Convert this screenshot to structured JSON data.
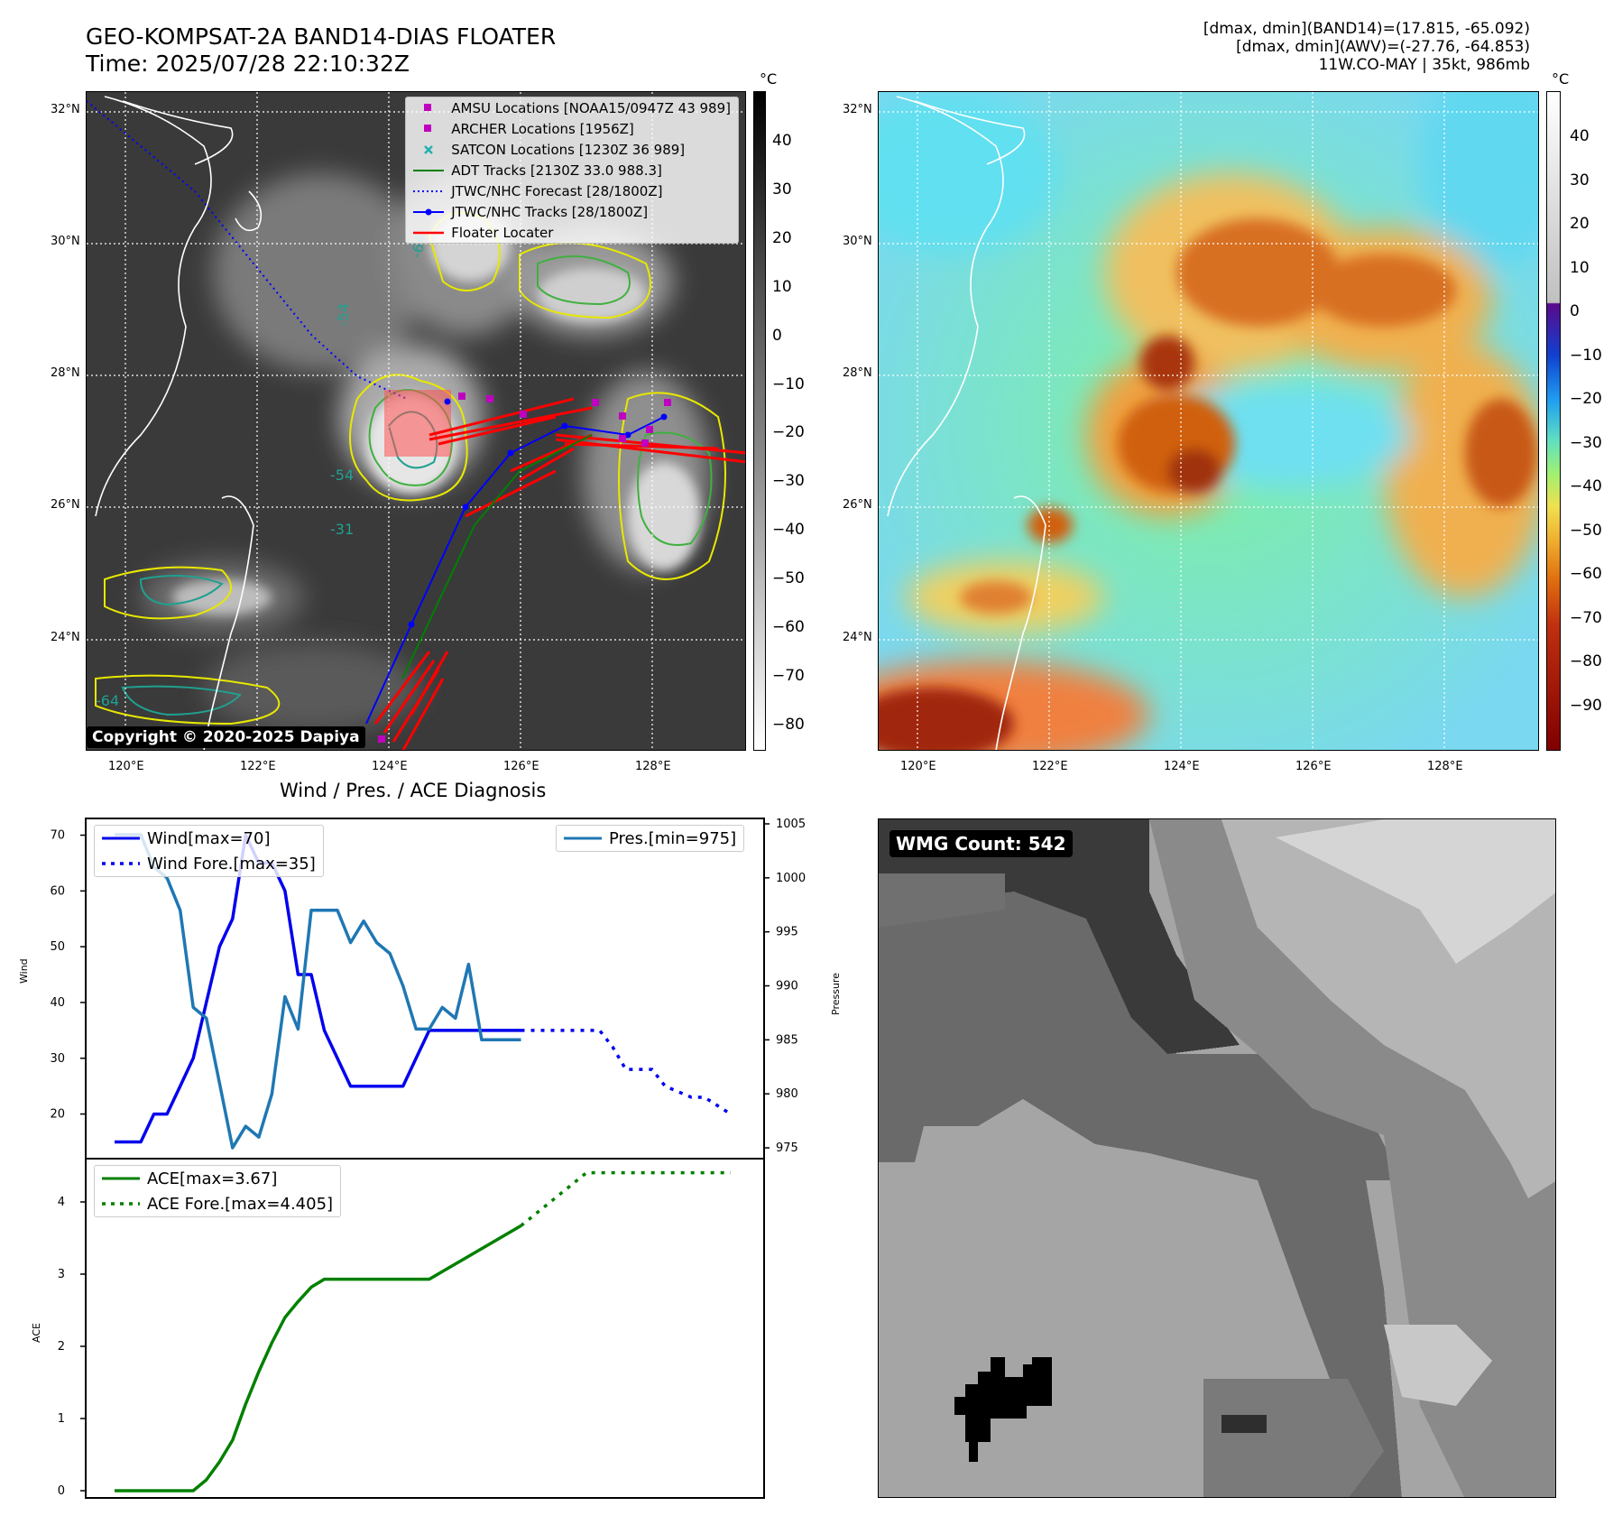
{
  "header": {
    "title_line1": "GEO-KOMPSAT-2A BAND14-DIAS FLOATER",
    "title_line2": "Time: 2025/07/28 22:10:32Z",
    "meta_line1": "[dmax, dmin](BAND14)=(17.815, -65.092)",
    "meta_line2": "[dmax, dmin](AWV)=(-27.76, -64.853)",
    "meta_line3": "11W.CO-MAY | 35kt, 986mb"
  },
  "map_axes": {
    "lat_labels": [
      "32°N",
      "30°N",
      "28°N",
      "26°N",
      "24°N"
    ],
    "lon_labels": [
      "120°E",
      "122°E",
      "124°E",
      "126°E",
      "128°E"
    ]
  },
  "left_map": {
    "colorbar_unit": "°C",
    "colorbar_ticks": [
      "40",
      "30",
      "20",
      "10",
      "0",
      "−10",
      "−20",
      "−30",
      "−40",
      "−50",
      "−60",
      "−70",
      "−80"
    ],
    "contour_labels": [
      "-64",
      "-54",
      "-54",
      "-31",
      "-64"
    ],
    "copyright": "Copyright © 2020-2025 Dapiya",
    "legend": [
      {
        "label": "AMSU Locations [NOAA15/0947Z 43 989]",
        "symbol": "square",
        "color": "#c000c0"
      },
      {
        "label": "ARCHER Locations [1956Z]",
        "symbol": "square",
        "color": "#c000c0"
      },
      {
        "label": "SATCON Locations [1230Z 36 989]",
        "symbol": "x",
        "color": "#20b0b0"
      },
      {
        "label": "ADT Tracks [2130Z 33.0 988.3]",
        "symbol": "line",
        "color": "#008000"
      },
      {
        "label": "JTWC/NHC Forecast [28/1800Z]",
        "symbol": "dotted",
        "color": "#0000ff"
      },
      {
        "label": "JTWC/NHC Tracks [28/1800Z]",
        "symbol": "line-dot",
        "color": "#0000ff"
      },
      {
        "label": "Floater Locater",
        "symbol": "line",
        "color": "#ff0000"
      }
    ]
  },
  "right_map": {
    "colorbar_unit": "°C",
    "colorbar_ticks": [
      "40",
      "30",
      "20",
      "10",
      "0",
      "−10",
      "−20",
      "−30",
      "−40",
      "−50",
      "−60",
      "−70",
      "−80",
      "−90"
    ]
  },
  "diagnosis": {
    "title": "Wind / Pres. / ACE Diagnosis",
    "wind_ylabel": "Wind",
    "pres_ylabel": "Pressure",
    "ace_ylabel": "ACE",
    "wind_legend": [
      "Wind[max=70]",
      "Wind Fore.[max=35]"
    ],
    "pres_legend": [
      "Pres.[min=975]"
    ],
    "ace_legend": [
      "ACE[max=3.67]",
      "ACE Fore.[max=4.405]"
    ]
  },
  "wmg": {
    "label": "WMG Count: 542"
  },
  "chart_data": [
    {
      "type": "line",
      "panel": "wind",
      "ylim": [
        12,
        73
      ],
      "yticks": [
        20,
        30,
        40,
        50,
        60,
        70
      ],
      "series": [
        {
          "name": "Wind[max=70]",
          "color": "#0000ee",
          "style": "solid",
          "x": [
            0,
            2,
            3,
            4,
            5,
            6,
            7,
            8,
            9,
            10,
            11,
            12,
            13,
            14,
            15,
            16,
            17,
            18,
            19,
            20,
            21,
            22,
            23,
            24,
            25,
            26,
            27,
            28,
            29,
            30,
            31
          ],
          "y": [
            15,
            15,
            20,
            20,
            25,
            30,
            40,
            50,
            55,
            70,
            65,
            65,
            60,
            45,
            45,
            35,
            30,
            25,
            25,
            25,
            25,
            25,
            30,
            35,
            35,
            35,
            35,
            35,
            35,
            35,
            35
          ]
        },
        {
          "name": "Wind Fore.[max=35]",
          "color": "#0000ee",
          "style": "dotted",
          "x": [
            31,
            33,
            35,
            37,
            38,
            39,
            41,
            42,
            44,
            45,
            47
          ],
          "y": [
            35,
            35,
            35,
            35,
            32,
            28,
            28,
            25,
            23,
            23,
            20
          ]
        }
      ]
    },
    {
      "type": "line",
      "panel": "pressure",
      "ylim": [
        974,
        1005.5
      ],
      "yticks": [
        975,
        980,
        985,
        990,
        995,
        1000,
        1005
      ],
      "series": [
        {
          "name": "Pres.[min=975]",
          "color": "#1f77b4",
          "style": "solid",
          "x": [
            0,
            2,
            3,
            4,
            5,
            6,
            7,
            8,
            9,
            10,
            11,
            12,
            13,
            14,
            15,
            16,
            17,
            18,
            19,
            20,
            21,
            22,
            23,
            24,
            25,
            26,
            27,
            28,
            29,
            30,
            31
          ],
          "y": [
            1004,
            1004,
            1001,
            1000,
            997,
            988,
            987,
            981,
            975,
            977,
            976,
            980,
            989,
            986,
            997,
            997,
            997,
            994,
            996,
            994,
            993,
            990,
            986,
            986,
            988,
            987,
            992,
            985,
            985,
            985,
            985
          ]
        }
      ]
    },
    {
      "type": "line",
      "panel": "ace",
      "ylim": [
        -0.1,
        4.6
      ],
      "yticks": [
        0,
        1,
        2,
        3,
        4
      ],
      "series": [
        {
          "name": "ACE[max=3.67]",
          "color": "#008000",
          "style": "solid",
          "x": [
            0,
            6,
            7,
            8,
            9,
            10,
            11,
            12,
            13,
            14,
            15,
            16,
            17,
            24,
            31
          ],
          "y": [
            0,
            0,
            0.15,
            0.4,
            0.7,
            1.2,
            1.65,
            2.05,
            2.4,
            2.62,
            2.82,
            2.93,
            2.93,
            2.93,
            3.67
          ]
        },
        {
          "name": "ACE Fore.[max=4.405]",
          "color": "#008000",
          "style": "dotted",
          "x": [
            31,
            36,
            47
          ],
          "y": [
            3.67,
            4.405,
            4.405
          ]
        }
      ]
    }
  ]
}
